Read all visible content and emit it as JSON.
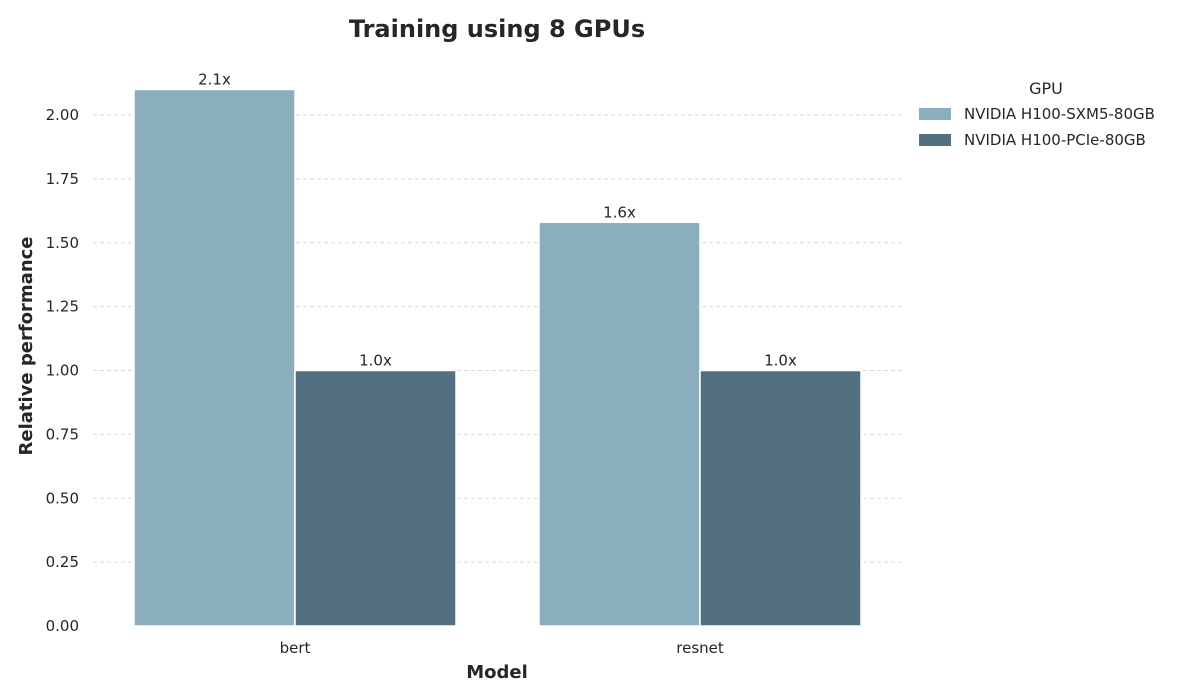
{
  "chart_data": {
    "type": "bar",
    "title": "Training using 8 GPUs",
    "xlabel": "Model",
    "ylabel": "Relative performance",
    "categories": [
      "bert",
      "resnet"
    ],
    "ylim": [
      0,
      2.2
    ],
    "yticks": [
      0.0,
      0.25,
      0.5,
      0.75,
      1.0,
      1.25,
      1.5,
      1.75,
      2.0
    ],
    "ytick_labels": [
      "0.00",
      "0.25",
      "0.50",
      "0.75",
      "1.00",
      "1.25",
      "1.50",
      "1.75",
      "2.00"
    ],
    "grid": true,
    "legend": {
      "title": "GPU",
      "placement": "outside-top-right"
    },
    "series": [
      {
        "name": "NVIDIA H100-SXM5-80GB",
        "color": "#8aaebb",
        "values": [
          2.1,
          1.58
        ],
        "labels": [
          "2.1x",
          "1.6x"
        ]
      },
      {
        "name": "NVIDIA H100-PCIe-80GB",
        "color": "#537080",
        "values": [
          1.0,
          1.0
        ],
        "labels": [
          "1.0x",
          "1.0x"
        ]
      }
    ]
  }
}
